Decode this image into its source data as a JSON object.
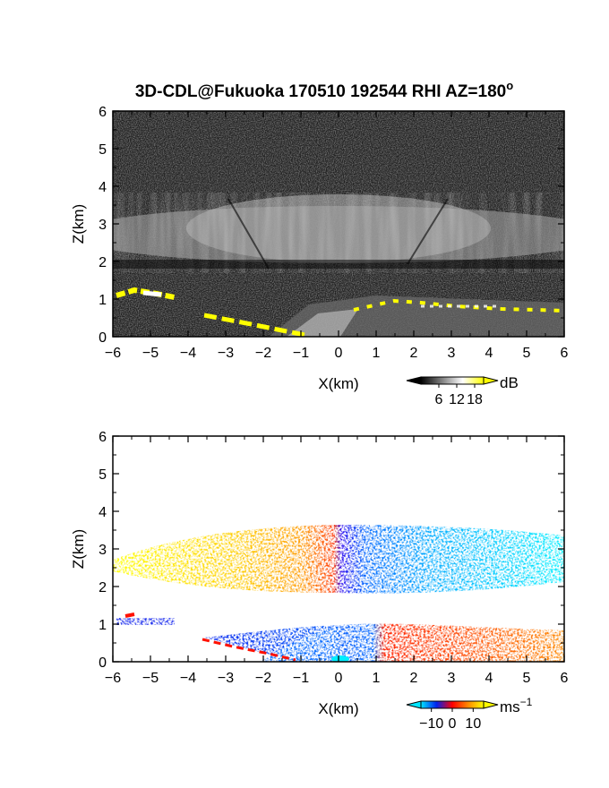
{
  "title": "3D-CDL@Fukuoka 170510 192544 RHI AZ=180",
  "title_superscript": "o",
  "chart_data": [
    {
      "type": "heatmap",
      "quantity": "backscatter intensity",
      "xlabel": "X(km)",
      "ylabel": "Z(km)",
      "xlim": [
        -6,
        6
      ],
      "ylim": [
        0,
        6
      ],
      "xticks": [
        -6,
        -5,
        -4,
        -3,
        -2,
        -1,
        0,
        1,
        2,
        3,
        4,
        5,
        6
      ],
      "yticks": [
        0,
        1,
        2,
        3,
        4,
        5,
        6
      ],
      "colorbar": {
        "unit": "dB",
        "ticks": [
          6,
          12,
          18
        ],
        "range": [
          0,
          21
        ],
        "colors": [
          "#000000",
          "#808080",
          "#ffffff",
          "#ffff00"
        ]
      },
      "features": [
        {
          "layer": "bright aerosol band",
          "z_range_km": [
            2.3,
            3.6
          ],
          "x_range_km": [
            -6,
            6
          ]
        },
        {
          "layer": "dark band",
          "z_range_km": [
            1.7,
            2.2
          ]
        },
        {
          "layer": "ground clutter (yellow)",
          "points": [
            [
              -6,
              1.0
            ],
            [
              -5.5,
              1.2
            ],
            [
              -4.6,
              1.05
            ],
            [
              -3.4,
              0.5
            ],
            [
              -2,
              0.2
            ],
            [
              -1,
              0.0
            ],
            [
              0.5,
              0.75
            ],
            [
              1.5,
              0.95
            ],
            [
              3,
              0.9
            ],
            [
              4.5,
              0.75
            ],
            [
              6,
              0.7
            ]
          ]
        }
      ]
    },
    {
      "type": "heatmap",
      "quantity": "Doppler velocity",
      "xlabel": "X(km)",
      "ylabel": "Z(km)",
      "xlim": [
        -6,
        6
      ],
      "ylim": [
        0,
        6
      ],
      "xticks": [
        -6,
        -5,
        -4,
        -3,
        -2,
        -1,
        0,
        1,
        2,
        3,
        4,
        5,
        6
      ],
      "yticks": [
        0,
        1,
        2,
        3,
        4,
        5,
        6
      ],
      "colorbar": {
        "unit": "ms",
        "unit_superscript": "−1",
        "ticks": [
          -10,
          0,
          10
        ],
        "tick_labels": [
          "−10",
          "0",
          "10"
        ],
        "range": [
          -15,
          15
        ],
        "colors": [
          "#00e5ff",
          "#0022ee",
          "#ff0000",
          "#ff8800",
          "#ffff00"
        ]
      },
      "features": [
        {
          "layer": "upper aerosol layer",
          "z_range_km": [
            2.0,
            3.6
          ],
          "x_range_km": [
            -6,
            6
          ],
          "velocity_left_ms": 12,
          "velocity_right_ms": -12
        },
        {
          "layer": "lower layer",
          "z_range_km": [
            0,
            1.2
          ],
          "velocity_left_ms": -8,
          "velocity_right_ms": 9
        }
      ]
    }
  ]
}
